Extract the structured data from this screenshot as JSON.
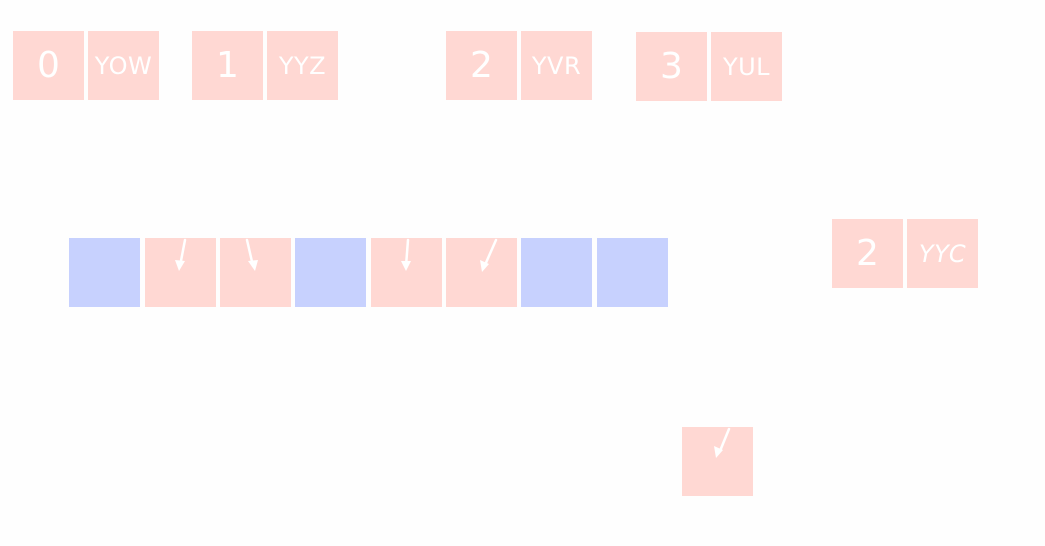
{
  "entries": [
    {
      "index": "0",
      "code": "YOW"
    },
    {
      "index": "1",
      "code": "YYZ"
    },
    {
      "index": "2",
      "code": "YVR"
    },
    {
      "index": "3",
      "code": "YUL"
    }
  ],
  "new_entry": {
    "index": "2",
    "code": "YYC"
  },
  "table_slots": [
    {
      "state": "empty"
    },
    {
      "state": "occupied"
    },
    {
      "state": "occupied"
    },
    {
      "state": "empty"
    },
    {
      "state": "occupied"
    },
    {
      "state": "occupied"
    },
    {
      "state": "empty"
    },
    {
      "state": "empty"
    }
  ],
  "colors": {
    "occupied": "#ffd8d3",
    "empty": "#c7d1fe",
    "text": "#ffffff",
    "background": "#fefefe"
  }
}
